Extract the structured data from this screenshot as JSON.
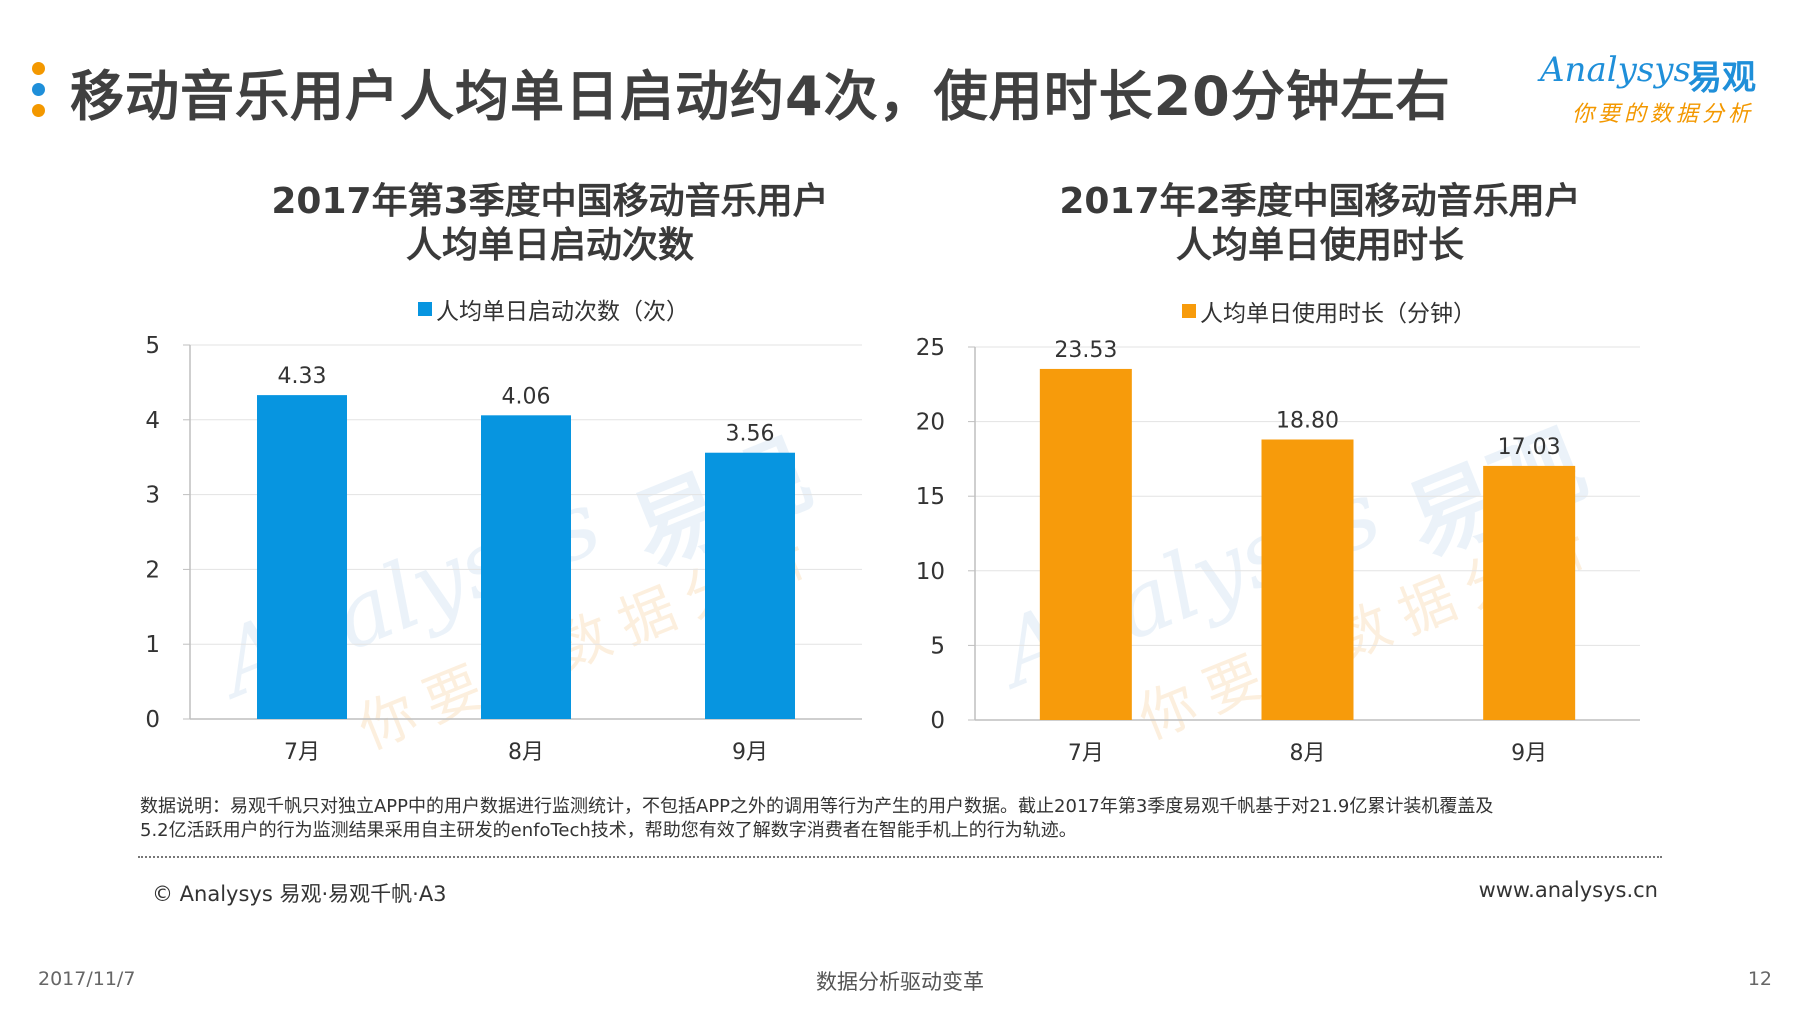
{
  "header": {
    "title": "移动音乐用户人均单日启动约4次，使用时长20分钟左右",
    "dot_colors": [
      "#f39800",
      "#1f8fd9",
      "#f39800"
    ]
  },
  "logo": {
    "en": "Analysys",
    "cn": "易观",
    "slogan": "你要的数据分析"
  },
  "watermark": {
    "en": "Analysys",
    "cn": "易观",
    "slogan": "你要的数据分析"
  },
  "chart_data": [
    {
      "type": "bar",
      "title_line1": "2017年第3季度中国移动音乐用户",
      "title_line2": "人均单日启动次数",
      "legend": "人均单日启动次数（次）",
      "color": "#0795e0",
      "categories": [
        "7月",
        "8月",
        "9月"
      ],
      "values": [
        4.33,
        4.06,
        3.56
      ],
      "value_labels": [
        "4.33",
        "4.06",
        "3.56"
      ],
      "ylim": [
        0,
        5
      ],
      "yticks": [
        0,
        1,
        2,
        3,
        4,
        5
      ],
      "grid": true
    },
    {
      "type": "bar",
      "title_line1": "2017年2季度中国移动音乐用户",
      "title_line2": "人均单日使用时长",
      "legend": "人均单日使用时长（分钟）",
      "color": "#f79b0b",
      "categories": [
        "7月",
        "8月",
        "9月"
      ],
      "values": [
        23.53,
        18.8,
        17.03
      ],
      "value_labels": [
        "23.53",
        "18.80",
        "17.03"
      ],
      "ylim": [
        0,
        25
      ],
      "yticks": [
        0,
        5,
        10,
        15,
        20,
        25
      ],
      "grid": true
    }
  ],
  "note": {
    "line1": "数据说明：易观千帆只对独立APP中的用户数据进行监测统计，不包括APP之外的调用等行为产生的用户数据。截止2017年第3季度易观千帆基于对21.9亿累计装机覆盖及",
    "line2": "5.2亿活跃用户的行为监测结果采用自主研发的enfoTech技术，帮助您有效了解数字消费者在智能手机上的行为轨迹。"
  },
  "footer": {
    "copyright": "© Analysys 易观·易观千帆·A3",
    "website": "www.analysys.cn"
  },
  "page": {
    "date": "2017/11/7",
    "slogan": "数据分析驱动变革",
    "number": "12"
  }
}
